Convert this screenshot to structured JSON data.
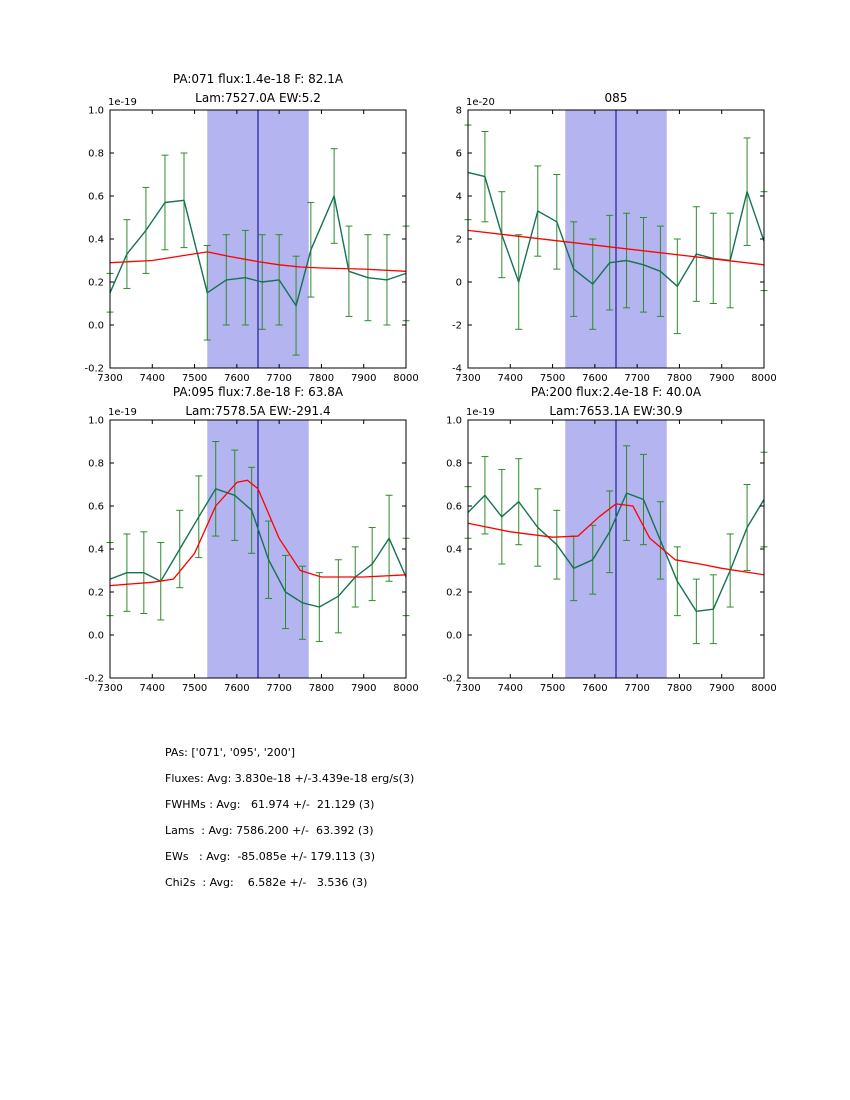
{
  "page": {
    "background": "#ffffff"
  },
  "colors": {
    "data_line": "#157252",
    "error_bar": "#2e8b2e",
    "fit_line": "#ff0000",
    "band_fill": "#b4b4f0",
    "center_line": "#00008b",
    "axis": "#000000"
  },
  "chart_data": [
    {
      "type": "line",
      "title_lines": [
        "PA:071 flux:1.4e-18 F: 82.1A",
        "Lam:7527.0A EW:5.2"
      ],
      "offset_label": "1e-19",
      "xlabel": "",
      "ylabel": "",
      "xlim": [
        7300,
        8000
      ],
      "ylim": [
        -0.2,
        1.0
      ],
      "xticks": [
        7300,
        7400,
        7500,
        7600,
        7700,
        7800,
        7900,
        8000
      ],
      "yticks": [
        -0.2,
        0.0,
        0.2,
        0.4,
        0.6,
        0.8,
        1.0
      ],
      "ytick_labels": [
        "-0.2",
        "0.0",
        "0.2",
        "0.4",
        "0.6",
        "0.8",
        "1.0"
      ],
      "band": [
        7530,
        7770
      ],
      "line_center": 7650,
      "points": {
        "x": [
          7300,
          7340,
          7385,
          7430,
          7475,
          7530,
          7575,
          7620,
          7660,
          7700,
          7740,
          7775,
          7830,
          7865,
          7910,
          7955,
          8000
        ],
        "y": [
          0.15,
          0.33,
          0.44,
          0.57,
          0.58,
          0.15,
          0.21,
          0.22,
          0.2,
          0.21,
          0.09,
          0.35,
          0.6,
          0.25,
          0.22,
          0.21,
          0.24
        ],
        "yerr": [
          0.09,
          0.16,
          0.2,
          0.22,
          0.22,
          0.22,
          0.21,
          0.22,
          0.22,
          0.21,
          0.23,
          0.22,
          0.22,
          0.21,
          0.2,
          0.21,
          0.22
        ]
      },
      "fit": {
        "x": [
          7300,
          7400,
          7480,
          7530,
          7580,
          7650,
          7700,
          7750,
          7800,
          7900,
          8000
        ],
        "y": [
          0.29,
          0.3,
          0.325,
          0.34,
          0.32,
          0.295,
          0.28,
          0.27,
          0.265,
          0.26,
          0.25
        ]
      }
    },
    {
      "type": "line",
      "title_lines": [
        "085"
      ],
      "offset_label": "1e-20",
      "xlabel": "",
      "ylabel": "",
      "xlim": [
        7300,
        8000
      ],
      "ylim": [
        -4,
        8
      ],
      "xticks": [
        7300,
        7400,
        7500,
        7600,
        7700,
        7800,
        7900,
        8000
      ],
      "yticks": [
        -4,
        -2,
        0,
        2,
        4,
        6,
        8
      ],
      "ytick_labels": [
        "-4",
        "-2",
        "0",
        "2",
        "4",
        "6",
        "8"
      ],
      "band": [
        7530,
        7770
      ],
      "line_center": 7650,
      "points": {
        "x": [
          7300,
          7340,
          7380,
          7420,
          7465,
          7510,
          7550,
          7595,
          7635,
          7675,
          7715,
          7755,
          7795,
          7840,
          7880,
          7920,
          7960,
          8000
        ],
        "y": [
          5.1,
          4.9,
          2.2,
          0.0,
          3.3,
          2.8,
          0.6,
          -0.1,
          0.9,
          1.0,
          0.8,
          0.5,
          -0.2,
          1.3,
          1.1,
          1.0,
          4.2,
          1.9
        ],
        "yerr": [
          2.2,
          2.1,
          2.0,
          2.2,
          2.1,
          2.2,
          2.2,
          2.1,
          2.2,
          2.2,
          2.2,
          2.1,
          2.2,
          2.2,
          2.1,
          2.2,
          2.5,
          2.3
        ]
      },
      "fit": {
        "x": [
          7300,
          8000
        ],
        "y": [
          2.4,
          0.8
        ]
      }
    },
    {
      "type": "line",
      "title_lines": [
        "PA:095 flux:7.8e-18 F: 63.8A",
        "Lam:7578.5A EW:-291.4"
      ],
      "offset_label": "1e-19",
      "xlabel": "",
      "ylabel": "",
      "xlim": [
        7300,
        8000
      ],
      "ylim": [
        -0.2,
        1.0
      ],
      "xticks": [
        7300,
        7400,
        7500,
        7600,
        7700,
        7800,
        7900,
        8000
      ],
      "yticks": [
        -0.2,
        0.0,
        0.2,
        0.4,
        0.6,
        0.8,
        1.0
      ],
      "ytick_labels": [
        "-0.2",
        "0.0",
        "0.2",
        "0.4",
        "0.6",
        "0.8",
        "1.0"
      ],
      "band": [
        7530,
        7770
      ],
      "line_center": 7650,
      "points": {
        "x": [
          7300,
          7340,
          7380,
          7420,
          7465,
          7510,
          7550,
          7595,
          7635,
          7675,
          7715,
          7755,
          7795,
          7840,
          7880,
          7920,
          7960,
          8000
        ],
        "y": [
          0.26,
          0.29,
          0.29,
          0.25,
          0.4,
          0.55,
          0.68,
          0.65,
          0.58,
          0.35,
          0.2,
          0.15,
          0.13,
          0.18,
          0.27,
          0.33,
          0.45,
          0.27
        ],
        "yerr": [
          0.17,
          0.18,
          0.19,
          0.18,
          0.18,
          0.19,
          0.22,
          0.21,
          0.2,
          0.18,
          0.17,
          0.17,
          0.16,
          0.17,
          0.14,
          0.17,
          0.2,
          0.18
        ]
      },
      "fit": {
        "x": [
          7300,
          7400,
          7450,
          7500,
          7550,
          7600,
          7625,
          7650,
          7700,
          7750,
          7800,
          7900,
          8000
        ],
        "y": [
          0.23,
          0.245,
          0.26,
          0.38,
          0.6,
          0.71,
          0.72,
          0.68,
          0.45,
          0.3,
          0.27,
          0.27,
          0.28
        ]
      }
    },
    {
      "type": "line",
      "title_lines": [
        "PA:200 flux:2.4e-18 F: 40.0A",
        "Lam:7653.1A EW:30.9"
      ],
      "offset_label": "1e-19",
      "xlabel": "",
      "ylabel": "",
      "xlim": [
        7300,
        8000
      ],
      "ylim": [
        -0.2,
        1.0
      ],
      "xticks": [
        7300,
        7400,
        7500,
        7600,
        7700,
        7800,
        7900,
        8000
      ],
      "yticks": [
        -0.2,
        0.0,
        0.2,
        0.4,
        0.6,
        0.8,
        1.0
      ],
      "ytick_labels": [
        "-0.2",
        "0.0",
        "0.2",
        "0.4",
        "0.6",
        "0.8",
        "1.0"
      ],
      "band": [
        7530,
        7770
      ],
      "line_center": 7650,
      "points": {
        "x": [
          7300,
          7340,
          7380,
          7420,
          7465,
          7510,
          7550,
          7595,
          7635,
          7675,
          7715,
          7755,
          7795,
          7840,
          7880,
          7920,
          7960,
          8000
        ],
        "y": [
          0.57,
          0.65,
          0.55,
          0.62,
          0.5,
          0.42,
          0.31,
          0.35,
          0.48,
          0.66,
          0.63,
          0.44,
          0.25,
          0.11,
          0.12,
          0.3,
          0.5,
          0.63
        ],
        "yerr": [
          0.12,
          0.18,
          0.22,
          0.2,
          0.18,
          0.16,
          0.15,
          0.16,
          0.19,
          0.22,
          0.21,
          0.18,
          0.16,
          0.15,
          0.16,
          0.17,
          0.2,
          0.22
        ]
      },
      "fit": {
        "x": [
          7300,
          7400,
          7500,
          7560,
          7610,
          7650,
          7690,
          7730,
          7790,
          7850,
          7900,
          8000
        ],
        "y": [
          0.52,
          0.48,
          0.455,
          0.46,
          0.55,
          0.61,
          0.6,
          0.45,
          0.35,
          0.33,
          0.31,
          0.28
        ]
      }
    }
  ],
  "summary": {
    "lines": [
      "PAs: ['071', '095', '200']",
      "Fluxes: Avg: 3.830e-18 +/-3.439e-18 erg/s(3)",
      "FWHMs : Avg:   61.974 +/-  21.129 (3)",
      "Lams  : Avg: 7586.200 +/-  63.392 (3)",
      "EWs   : Avg:  -85.085e +/- 179.113 (3)",
      "Chi2s  : Avg:    6.582e +/-   3.536 (3)"
    ]
  }
}
